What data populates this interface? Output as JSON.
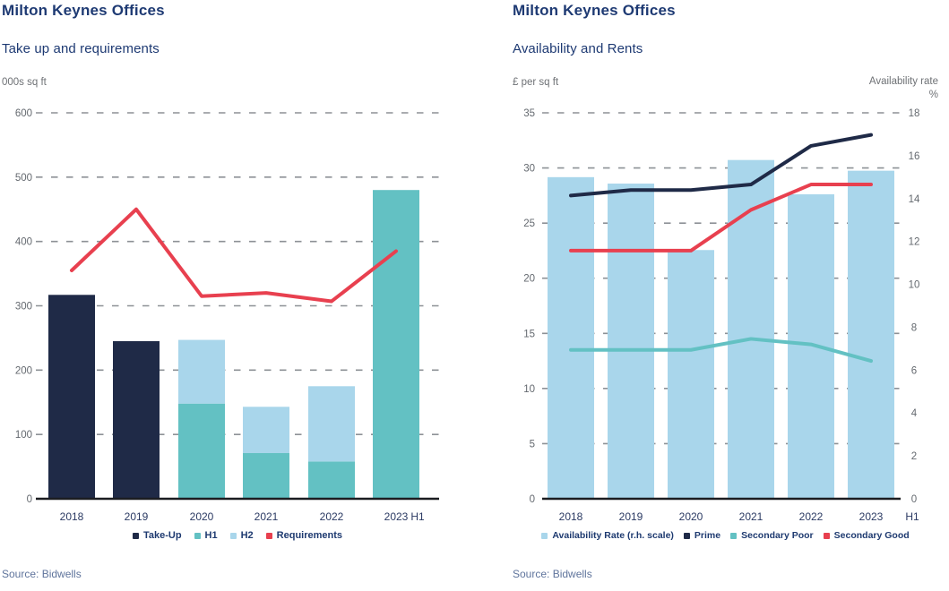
{
  "chart_data": [
    {
      "id": "takeup-and-requirements",
      "type": "bar",
      "title": "Milton Keynes Offices",
      "subtitle": "Take up and requirements",
      "ylabel": "000s sq ft",
      "categories": [
        "2018",
        "2019",
        "2020",
        "2021",
        "2022",
        "2023"
      ],
      "x_extra_label": "H1",
      "ylim_left": [
        0,
        600
      ],
      "yticks_left": [
        0,
        100,
        200,
        300,
        400,
        500,
        600
      ],
      "grid": "dashed-horizontal",
      "legend_position": "bottom",
      "series": [
        {
          "name": "Take-Up",
          "type": "bar",
          "axis": "left",
          "color": "#1f2a47",
          "values": [
            317,
            245,
            null,
            null,
            null,
            null
          ]
        },
        {
          "name": "H1",
          "type": "bar",
          "axis": "left",
          "color": "#63c1c3",
          "values": [
            null,
            null,
            148,
            71,
            58,
            480
          ]
        },
        {
          "name": "H2",
          "type": "bar",
          "axis": "left",
          "color": "#a9d6eb",
          "values": [
            null,
            null,
            99,
            72,
            117,
            null
          ]
        },
        {
          "name": "Requirements",
          "type": "line",
          "axis": "left",
          "color": "#e8404f",
          "values": [
            355,
            450,
            315,
            320,
            307,
            385
          ]
        }
      ],
      "source": "Source: Bidwells"
    },
    {
      "id": "availability-and-rents",
      "type": "bar",
      "title": "Milton Keynes Offices",
      "subtitle": "Availability and Rents",
      "ylabel_left": "£ per sq ft",
      "ylabel_right": "Availability rate %",
      "categories": [
        "2018",
        "2019",
        "2020",
        "2021",
        "2022",
        "2023"
      ],
      "x_extra_label": "H1",
      "ylim_left": [
        0,
        35
      ],
      "yticks_left": [
        0,
        5,
        10,
        15,
        20,
        25,
        30,
        35
      ],
      "ylim_right": [
        0,
        18
      ],
      "yticks_right": [
        0,
        2,
        4,
        6,
        8,
        10,
        12,
        14,
        16,
        18
      ],
      "grid": "dashed-horizontal",
      "legend_position": "bottom",
      "series": [
        {
          "name": "Availability Rate (r.h. scale)",
          "type": "bar",
          "axis": "right",
          "color": "#a9d6eb",
          "values": [
            15.0,
            14.7,
            11.6,
            15.8,
            14.2,
            15.3
          ]
        },
        {
          "name": "Prime",
          "type": "line",
          "axis": "left",
          "color": "#1f2a47",
          "values": [
            27.5,
            28.0,
            28.0,
            28.5,
            32.0,
            33.0
          ]
        },
        {
          "name": "Secondary Poor",
          "type": "line",
          "axis": "left",
          "color": "#63c1c3",
          "values": [
            13.5,
            13.5,
            13.5,
            14.5,
            14.0,
            12.5
          ]
        },
        {
          "name": "Secondary Good",
          "type": "line",
          "axis": "left",
          "color": "#e8404f",
          "values": [
            22.5,
            22.5,
            22.5,
            26.2,
            28.5,
            28.5
          ]
        }
      ],
      "source": "Source: Bidwells"
    }
  ],
  "colors": {
    "title_navy": "#1e3a73",
    "bar_navy": "#1f2a47",
    "teal": "#63c1c3",
    "light_blue": "#a9d6eb",
    "red": "#e8404f",
    "gridline_gray": "#8d9196",
    "tick_gray": "#64696f",
    "source_blue": "#5f749c"
  }
}
